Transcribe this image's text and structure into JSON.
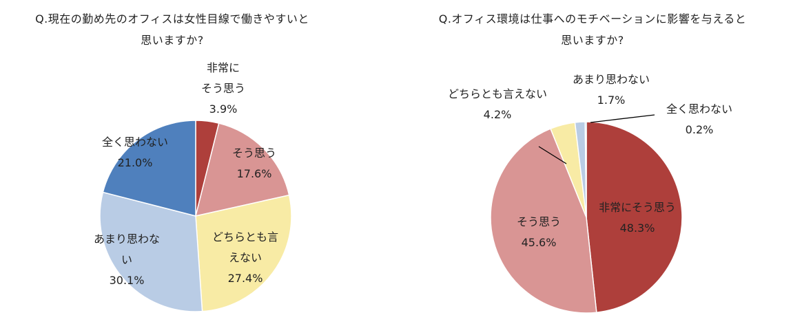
{
  "chart_data": [
    {
      "type": "pie",
      "title": "Q.現在の勤め先のオフィスは女性目線で働きやすいと思いますか?",
      "title_lines": [
        "Q.現在の勤め先のオフィスは女性目線で働きやすいと",
        "思いますか?"
      ],
      "slices": [
        {
          "label": "非常にそう思う",
          "label_lines": [
            "非常に",
            "そう思う"
          ],
          "value": 3.9,
          "value_text": "3.9%",
          "color": "#ae3f3b"
        },
        {
          "label": "そう思う",
          "label_lines": [
            "そう思う"
          ],
          "value": 17.6,
          "value_text": "17.6%",
          "color": "#d99594"
        },
        {
          "label": "どちらとも言えない",
          "label_lines": [
            "どちらとも言",
            "えない"
          ],
          "value": 27.4,
          "value_text": "27.4%",
          "color": "#f8eba5"
        },
        {
          "label": "あまり思わない",
          "label_lines": [
            "あまり思わな",
            "い"
          ],
          "value": 30.1,
          "value_text": "30.1%",
          "color": "#b9cce5"
        },
        {
          "label": "全く思わない",
          "label_lines": [
            "全く思わない"
          ],
          "value": 21.0,
          "value_text": "21.0%",
          "color": "#4f80bd"
        }
      ]
    },
    {
      "type": "pie",
      "title": "Q.オフィス環境は仕事へのモチベーションに影響を与えると思いますか?",
      "title_lines": [
        "Q.オフィス環境は仕事へのモチベーションに影響を与えると",
        "思いますか?"
      ],
      "slices": [
        {
          "label": "非常にそう思う",
          "label_lines": [
            "非常にそう思う"
          ],
          "value": 48.3,
          "value_text": "48.3%",
          "color": "#ae3f3b"
        },
        {
          "label": "そう思う",
          "label_lines": [
            "そう思う"
          ],
          "value": 45.6,
          "value_text": "45.6%",
          "color": "#d99594"
        },
        {
          "label": "どちらとも言えない",
          "label_lines": [
            "どちらとも言えない"
          ],
          "value": 4.2,
          "value_text": "4.2%",
          "color": "#f8eba5"
        },
        {
          "label": "あまり思わない",
          "label_lines": [
            "あまり思わない"
          ],
          "value": 1.7,
          "value_text": "1.7%",
          "color": "#b9cce5"
        },
        {
          "label": "全く思わない",
          "label_lines": [
            "全く思わない"
          ],
          "value": 0.2,
          "value_text": "0.2%",
          "color": "#4f80bd"
        }
      ]
    }
  ]
}
